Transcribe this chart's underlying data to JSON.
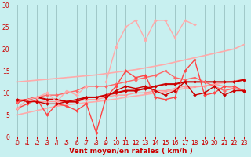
{
  "background_color": "#c8f0f0",
  "grid_color": "#a0c8c8",
  "xlabel": "Vent moyen/en rafales ( km/h )",
  "xlim": [
    -0.5,
    23.5
  ],
  "ylim": [
    0,
    30
  ],
  "yticks": [
    0,
    5,
    10,
    15,
    20,
    25,
    30
  ],
  "xticks": [
    0,
    1,
    2,
    3,
    4,
    5,
    6,
    7,
    8,
    9,
    10,
    11,
    12,
    13,
    14,
    15,
    16,
    17,
    18,
    19,
    20,
    21,
    22,
    23
  ],
  "series": [
    {
      "x": [
        0,
        1,
        2,
        3,
        4,
        5,
        6,
        7,
        8,
        9,
        10,
        11,
        12,
        13,
        14,
        15,
        16,
        17,
        18,
        19,
        20,
        21,
        22,
        23
      ],
      "y": [
        12.5,
        12.7,
        12.9,
        13.1,
        13.3,
        13.5,
        13.7,
        13.9,
        14.1,
        14.4,
        14.7,
        15.0,
        15.3,
        15.7,
        16.1,
        16.5,
        17.0,
        17.5,
        18.0,
        18.5,
        19.0,
        19.5,
        20.0,
        21.0
      ],
      "color": "#ffaaaa",
      "lw": 1.2,
      "marker": null
    },
    {
      "x": [
        0,
        1,
        2,
        3,
        4,
        5,
        6,
        7,
        8,
        9,
        10,
        11,
        12,
        13,
        14,
        15,
        16,
        17,
        18,
        19,
        20,
        21,
        22,
        23
      ],
      "y": [
        5.0,
        5.5,
        6.0,
        6.5,
        7.0,
        7.3,
        7.5,
        7.8,
        8.0,
        8.3,
        8.6,
        9.0,
        9.3,
        9.6,
        10.0,
        10.3,
        10.6,
        11.0,
        11.3,
        11.6,
        12.0,
        12.3,
        12.7,
        13.0
      ],
      "color": "#ffaaaa",
      "lw": 1.2,
      "marker": null
    },
    {
      "x": [
        0,
        1,
        2,
        3,
        4,
        5,
        6,
        7,
        8,
        9,
        10,
        11,
        12,
        13,
        14,
        15,
        16,
        17,
        18,
        19,
        20,
        21,
        22,
        23
      ],
      "y": [
        8.5,
        8.5,
        8.0,
        8.0,
        8.0,
        8.0,
        8.0,
        8.5,
        8.5,
        9.0,
        9.5,
        9.5,
        10.0,
        10.0,
        10.5,
        10.5,
        11.0,
        11.5,
        11.5,
        11.5,
        12.0,
        11.5,
        11.0,
        10.5
      ],
      "color": "#ff9999",
      "lw": 1.0,
      "marker": "D",
      "ms": 2.0
    },
    {
      "x": [
        0,
        1,
        2,
        3,
        4,
        5,
        6,
        7,
        8,
        9,
        10,
        11,
        12,
        13,
        14,
        15,
        16,
        17,
        18,
        19,
        20,
        21,
        22,
        23
      ],
      "y": [
        8.0,
        8.5,
        9.0,
        8.5,
        8.5,
        8.0,
        8.0,
        9.0,
        9.0,
        9.5,
        10.0,
        10.5,
        10.5,
        11.0,
        11.5,
        12.0,
        12.0,
        12.5,
        12.5,
        12.5,
        12.5,
        12.5,
        12.5,
        13.0
      ],
      "color": "#cc0000",
      "lw": 1.5,
      "marker": "D",
      "ms": 2.0
    },
    {
      "x": [
        0,
        1,
        2,
        3,
        4,
        5,
        6,
        7,
        8,
        9,
        10,
        11,
        12,
        13,
        14,
        15,
        16,
        17,
        18,
        19,
        20,
        21,
        22,
        23
      ],
      "y": [
        8.0,
        8.5,
        9.0,
        9.5,
        9.5,
        10.0,
        10.5,
        11.5,
        11.5,
        11.5,
        12.0,
        12.5,
        13.0,
        13.5,
        14.0,
        15.0,
        13.5,
        13.0,
        13.5,
        12.5,
        11.5,
        10.5,
        11.0,
        10.5
      ],
      "color": "#ff6666",
      "lw": 1.0,
      "marker": "D",
      "ms": 2.0
    },
    {
      "x": [
        0,
        1,
        2,
        3,
        4,
        5,
        6,
        7,
        8,
        9,
        10,
        11,
        12,
        13,
        14,
        15,
        16,
        17,
        18,
        19,
        20,
        21,
        22,
        23
      ],
      "y": [
        6.5,
        7.5,
        8.5,
        5.0,
        7.5,
        7.0,
        6.0,
        7.5,
        1.0,
        9.0,
        11.5,
        15.0,
        13.5,
        14.0,
        9.0,
        8.5,
        9.0,
        15.0,
        17.5,
        9.5,
        10.0,
        11.5,
        11.5,
        10.5
      ],
      "color": "#ff4444",
      "lw": 1.0,
      "marker": "D",
      "ms": 2.0
    },
    {
      "x": [
        0,
        1,
        2,
        3,
        4,
        5,
        6,
        7,
        8,
        9,
        10,
        11,
        12,
        13,
        14,
        15,
        16,
        17,
        18,
        19,
        20,
        21,
        22,
        23
      ],
      "y": [
        6.5,
        8.5,
        9.0,
        10.0,
        8.0,
        10.5,
        9.5,
        11.5,
        null,
        12.5,
        20.5,
        25.0,
        26.5,
        22.0,
        26.5,
        26.5,
        22.5,
        26.5,
        25.5,
        null,
        null,
        null,
        null,
        null
      ],
      "color": "#ffaaaa",
      "lw": 1.0,
      "marker": "D",
      "ms": 2.0
    },
    {
      "x": [
        0,
        1,
        2,
        3,
        4,
        5,
        6,
        7,
        8,
        9,
        10,
        11,
        12,
        13,
        14,
        15,
        16,
        17,
        18,
        19,
        20,
        21,
        22,
        23
      ],
      "y": [
        8.5,
        8.0,
        8.0,
        7.5,
        7.5,
        8.0,
        8.5,
        9.0,
        null,
        9.0,
        10.5,
        11.5,
        11.0,
        11.5,
        10.5,
        9.5,
        10.5,
        12.5,
        9.5,
        10.0,
        11.5,
        9.5,
        10.5,
        10.5
      ],
      "color": "#cc0000",
      "lw": 1.0,
      "marker": "D",
      "ms": 2.0
    }
  ],
  "arrow_color": "#cc0000",
  "xlabel_color": "#cc0000",
  "tick_color": "#cc0000",
  "label_fontsize": 6.5,
  "tick_fontsize": 5.5
}
